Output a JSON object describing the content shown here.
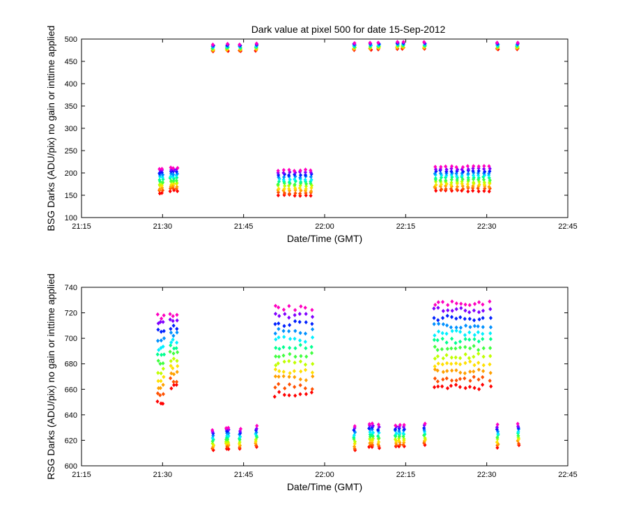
{
  "figure": {
    "title": "Dark value at pixel 500 for date 15-Sep-2012"
  },
  "colors": {
    "band_palette": [
      "#ff0000",
      "#ff5000",
      "#ffa000",
      "#ffe000",
      "#c0ff00",
      "#40ff40",
      "#00ff90",
      "#00f0ff",
      "#0090ff",
      "#0020ff",
      "#8000ff",
      "#ff00c0"
    ]
  },
  "chart_data": [
    {
      "type": "scatter",
      "id": "bsg",
      "title": "Dark value at pixel 500 for date 15-Sep-2012",
      "xlabel": "Date/Time (GMT)",
      "ylabel": "BSG Darks (ADU/pix) no gain or inttime applied",
      "xlim": [
        "21:15",
        "22:45"
      ],
      "ylim": [
        100,
        500
      ],
      "xticks": [
        "21:15",
        "21:30",
        "21:45",
        "22:00",
        "22:15",
        "22:30",
        "22:45"
      ],
      "yticks": [
        100,
        150,
        200,
        250,
        300,
        350,
        400,
        450,
        500
      ],
      "grid": false,
      "marker": "diamond",
      "clusters": [
        {
          "x": [
            "21:29:30",
            "21:30:00"
          ],
          "low": 155,
          "high": 210
        },
        {
          "x": [
            "21:31:30",
            "21:32:00",
            "21:32:40"
          ],
          "low": 160,
          "high": 212
        },
        {
          "x": [
            "21:39:20"
          ],
          "low": 472,
          "high": 488
        },
        {
          "x": [
            "21:42:00"
          ],
          "low": 473,
          "high": 489
        },
        {
          "x": [
            "21:44:20"
          ],
          "low": 473,
          "high": 488
        },
        {
          "x": [
            "21:47:20"
          ],
          "low": 474,
          "high": 490
        },
        {
          "x": [
            "21:51:30",
            "21:52:30",
            "21:53:30",
            "21:54:30",
            "21:55:30",
            "21:56:30",
            "21:57:30"
          ],
          "low": 150,
          "high": 206
        },
        {
          "x": [
            "22:05:30"
          ],
          "low": 475,
          "high": 491
        },
        {
          "x": [
            "22:08:30"
          ],
          "low": 476,
          "high": 492
        },
        {
          "x": [
            "22:10:00"
          ],
          "low": 477,
          "high": 492
        },
        {
          "x": [
            "22:13:30",
            "22:14:30"
          ],
          "low": 478,
          "high": 494
        },
        {
          "x": [
            "22:18:30"
          ],
          "low": 478,
          "high": 493
        },
        {
          "x": [
            "22:20:30",
            "22:21:30",
            "22:22:30",
            "22:23:30",
            "22:24:30",
            "22:25:30",
            "22:26:30",
            "22:27:30",
            "22:28:30",
            "22:29:30",
            "22:30:30"
          ],
          "low": 160,
          "high": 214
        },
        {
          "x": [
            "22:32:00"
          ],
          "low": 477,
          "high": 492
        },
        {
          "x": [
            "22:35:40"
          ],
          "low": 477,
          "high": 492
        }
      ]
    },
    {
      "type": "scatter",
      "id": "rsg",
      "title": "",
      "xlabel": "Date/Time (GMT)",
      "ylabel": "RSG Darks (ADU/pix) no gain or inttime applied",
      "xlim": [
        "21:15",
        "22:45"
      ],
      "ylim": [
        600,
        740
      ],
      "xticks": [
        "21:15",
        "21:30",
        "21:45",
        "22:00",
        "22:15",
        "22:30",
        "22:45"
      ],
      "yticks": [
        600,
        620,
        640,
        660,
        680,
        700,
        720,
        740
      ],
      "grid": false,
      "marker": "diamond",
      "clusters": [
        {
          "x": [
            "21:29:10",
            "21:29:40",
            "21:30:10"
          ],
          "low": 650,
          "high": 717
        },
        {
          "x": [
            "21:31:30",
            "21:32:00",
            "21:32:40"
          ],
          "low": 662,
          "high": 719
        },
        {
          "x": [
            "21:39:20"
          ],
          "low": 612,
          "high": 628
        },
        {
          "x": [
            "21:41:50",
            "21:42:10"
          ],
          "low": 613,
          "high": 630
        },
        {
          "x": [
            "21:44:20"
          ],
          "low": 613,
          "high": 629
        },
        {
          "x": [
            "21:47:20"
          ],
          "low": 615,
          "high": 631
        },
        {
          "x": [
            "21:50:50",
            "21:51:30",
            "21:52:30",
            "21:53:30",
            "21:54:30",
            "21:55:30",
            "21:56:30",
            "21:57:40"
          ],
          "low": 656,
          "high": 724
        },
        {
          "x": [
            "22:05:30"
          ],
          "low": 612,
          "high": 631
        },
        {
          "x": [
            "22:08:20",
            "22:08:50"
          ],
          "low": 615,
          "high": 633
        },
        {
          "x": [
            "22:10:00"
          ],
          "low": 614,
          "high": 632
        },
        {
          "x": [
            "22:13:10",
            "22:13:50",
            "22:14:40"
          ],
          "low": 615,
          "high": 632
        },
        {
          "x": [
            "22:18:30"
          ],
          "low": 616,
          "high": 633
        },
        {
          "x": [
            "22:20:20",
            "22:21:00",
            "22:21:50",
            "22:22:40",
            "22:23:30",
            "22:24:20",
            "22:25:10",
            "22:26:00",
            "22:26:50",
            "22:27:40",
            "22:28:30",
            "22:29:20",
            "22:30:40"
          ],
          "low": 662,
          "high": 728
        },
        {
          "x": [
            "22:32:00"
          ],
          "low": 614,
          "high": 632
        },
        {
          "x": [
            "22:35:50"
          ],
          "low": 616,
          "high": 633
        }
      ]
    }
  ]
}
